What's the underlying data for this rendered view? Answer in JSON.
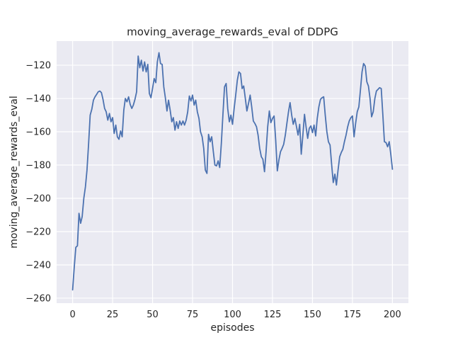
{
  "figure": {
    "title": "moving_average_rewards_eval of DDPG",
    "xlabel": "episodes",
    "ylabel": "moving_average_rewards_eval"
  },
  "colors": {
    "figure_background": "#ffffff",
    "plot_background": "#eaeaf2",
    "grid": "#ffffff",
    "line": "#4c72b0",
    "text": "#262626"
  },
  "chart_data": {
    "type": "line",
    "title": "moving_average_rewards_eval of DDPG",
    "xlabel": "episodes",
    "ylabel": "moving_average_rewards_eval",
    "xlim": [
      -10,
      210
    ],
    "ylim": [
      -263,
      -105.5
    ],
    "x_ticks": [
      0,
      25,
      50,
      75,
      100,
      125,
      150,
      175,
      200
    ],
    "y_ticks": [
      -120,
      -140,
      -160,
      -180,
      -200,
      -220,
      -240,
      -260
    ],
    "grid": true,
    "legend": false,
    "series": [
      {
        "points": [
          [
            0,
            -255
          ],
          [
            1,
            -242
          ],
          [
            2,
            -229.5
          ],
          [
            3,
            -228.5
          ],
          [
            4,
            -209
          ],
          [
            5,
            -215
          ],
          [
            6,
            -211
          ],
          [
            7,
            -200
          ],
          [
            8,
            -193
          ],
          [
            9,
            -183
          ],
          [
            10,
            -167
          ],
          [
            11,
            -150
          ],
          [
            12,
            -146.5
          ],
          [
            13,
            -141
          ],
          [
            14,
            -139
          ],
          [
            15,
            -137.5
          ],
          [
            16,
            -136
          ],
          [
            17,
            -135.5
          ],
          [
            18,
            -136.5
          ],
          [
            19,
            -140.5
          ],
          [
            20,
            -146
          ],
          [
            21,
            -148
          ],
          [
            22,
            -153
          ],
          [
            23,
            -149
          ],
          [
            24,
            -154
          ],
          [
            25,
            -151.5
          ],
          [
            26,
            -161
          ],
          [
            27,
            -156
          ],
          [
            28,
            -163
          ],
          [
            29,
            -164.5
          ],
          [
            30,
            -159.5
          ],
          [
            31,
            -163
          ],
          [
            32,
            -147
          ],
          [
            33,
            -140
          ],
          [
            34,
            -142
          ],
          [
            35,
            -139
          ],
          [
            36,
            -143.5
          ],
          [
            37,
            -146
          ],
          [
            38,
            -144
          ],
          [
            39,
            -140.5
          ],
          [
            40,
            -136
          ],
          [
            41,
            -114.5
          ],
          [
            42,
            -121.5
          ],
          [
            43,
            -117
          ],
          [
            44,
            -123.5
          ],
          [
            45,
            -118
          ],
          [
            46,
            -124
          ],
          [
            47,
            -119.5
          ],
          [
            48,
            -137
          ],
          [
            49,
            -139.5
          ],
          [
            50,
            -134
          ],
          [
            51,
            -128
          ],
          [
            52,
            -130.5
          ],
          [
            53,
            -118
          ],
          [
            54,
            -112.5
          ],
          [
            55,
            -119
          ],
          [
            56,
            -119.5
          ],
          [
            57,
            -133
          ],
          [
            58,
            -139.5
          ],
          [
            59,
            -147.5
          ],
          [
            60,
            -141
          ],
          [
            61,
            -147
          ],
          [
            62,
            -154
          ],
          [
            63,
            -151.5
          ],
          [
            64,
            -159
          ],
          [
            65,
            -154
          ],
          [
            66,
            -158
          ],
          [
            67,
            -153.5
          ],
          [
            68,
            -156
          ],
          [
            69,
            -153.5
          ],
          [
            70,
            -156
          ],
          [
            71,
            -153
          ],
          [
            72,
            -148
          ],
          [
            73,
            -138.5
          ],
          [
            74,
            -141.5
          ],
          [
            75,
            -138
          ],
          [
            76,
            -144
          ],
          [
            77,
            -141
          ],
          [
            78,
            -148
          ],
          [
            79,
            -152
          ],
          [
            80,
            -160
          ],
          [
            81,
            -163
          ],
          [
            82,
            -170
          ],
          [
            83,
            -183
          ],
          [
            84,
            -185
          ],
          [
            85,
            -161.5
          ],
          [
            86,
            -166
          ],
          [
            87,
            -163
          ],
          [
            88,
            -172
          ],
          [
            89,
            -180
          ],
          [
            90,
            -180.5
          ],
          [
            91,
            -177.5
          ],
          [
            92,
            -181.5
          ],
          [
            93,
            -167
          ],
          [
            94,
            -150
          ],
          [
            95,
            -133
          ],
          [
            96,
            -131
          ],
          [
            97,
            -146
          ],
          [
            98,
            -154
          ],
          [
            99,
            -150
          ],
          [
            100,
            -155.5
          ],
          [
            101,
            -146
          ],
          [
            102,
            -138
          ],
          [
            103,
            -129
          ],
          [
            104,
            -124
          ],
          [
            105,
            -125
          ],
          [
            106,
            -134
          ],
          [
            107,
            -132.5
          ],
          [
            108,
            -140
          ],
          [
            109,
            -147.5
          ],
          [
            110,
            -143
          ],
          [
            111,
            -138
          ],
          [
            112,
            -145
          ],
          [
            113,
            -153.5
          ],
          [
            114,
            -155
          ],
          [
            115,
            -157
          ],
          [
            116,
            -162
          ],
          [
            117,
            -170
          ],
          [
            118,
            -175
          ],
          [
            119,
            -176.5
          ],
          [
            120,
            -184
          ],
          [
            121,
            -172
          ],
          [
            122,
            -157
          ],
          [
            123,
            -147.5
          ],
          [
            124,
            -154.5
          ],
          [
            125,
            -152
          ],
          [
            126,
            -150.5
          ],
          [
            127,
            -165
          ],
          [
            128,
            -183.5
          ],
          [
            129,
            -177
          ],
          [
            130,
            -172
          ],
          [
            131,
            -170
          ],
          [
            132,
            -167.5
          ],
          [
            133,
            -162
          ],
          [
            134,
            -155
          ],
          [
            135,
            -148
          ],
          [
            136,
            -142.5
          ],
          [
            137,
            -150
          ],
          [
            138,
            -155.5
          ],
          [
            139,
            -152
          ],
          [
            140,
            -157
          ],
          [
            141,
            -162
          ],
          [
            142,
            -155.5
          ],
          [
            143,
            -173.5
          ],
          [
            144,
            -162
          ],
          [
            145,
            -149.5
          ],
          [
            146,
            -157
          ],
          [
            147,
            -164
          ],
          [
            148,
            -158
          ],
          [
            149,
            -156.5
          ],
          [
            150,
            -160.5
          ],
          [
            151,
            -156
          ],
          [
            152,
            -162.5
          ],
          [
            153,
            -152
          ],
          [
            154,
            -145
          ],
          [
            155,
            -140.5
          ],
          [
            156,
            -139.5
          ],
          [
            157,
            -139
          ],
          [
            158,
            -150
          ],
          [
            159,
            -160
          ],
          [
            160,
            -166
          ],
          [
            161,
            -168
          ],
          [
            162,
            -180
          ],
          [
            163,
            -190.5
          ],
          [
            164,
            -185.5
          ],
          [
            165,
            -192
          ],
          [
            166,
            -183
          ],
          [
            167,
            -175
          ],
          [
            168,
            -172.5
          ],
          [
            169,
            -170.5
          ],
          [
            170,
            -166
          ],
          [
            171,
            -162
          ],
          [
            172,
            -157
          ],
          [
            173,
            -153.5
          ],
          [
            174,
            -151.5
          ],
          [
            175,
            -150.5
          ],
          [
            176,
            -163
          ],
          [
            177,
            -155
          ],
          [
            178,
            -148
          ],
          [
            179,
            -145
          ],
          [
            180,
            -135
          ],
          [
            181,
            -124
          ],
          [
            182,
            -119
          ],
          [
            183,
            -120.5
          ],
          [
            184,
            -130
          ],
          [
            185,
            -132.5
          ],
          [
            186,
            -140
          ],
          [
            187,
            -151
          ],
          [
            188,
            -148
          ],
          [
            189,
            -140
          ],
          [
            190,
            -135.5
          ],
          [
            191,
            -134.5
          ],
          [
            192,
            -133.5
          ],
          [
            193,
            -134
          ],
          [
            194,
            -150
          ],
          [
            195,
            -166
          ],
          [
            196,
            -166.5
          ],
          [
            197,
            -169
          ],
          [
            198,
            -166
          ],
          [
            199,
            -173.5
          ],
          [
            200,
            -182.5
          ]
        ]
      }
    ]
  }
}
